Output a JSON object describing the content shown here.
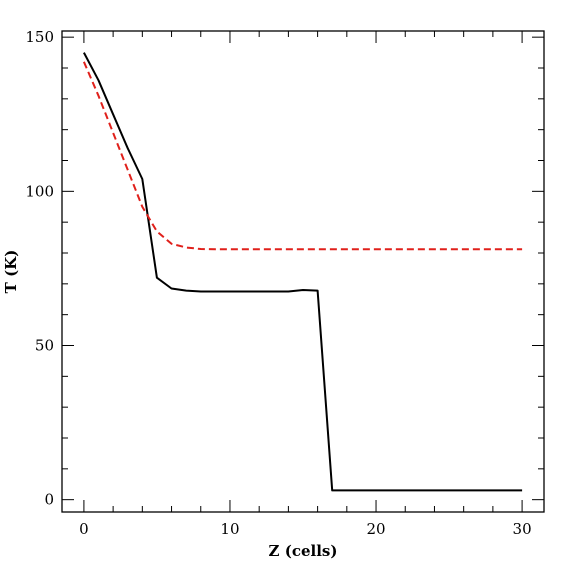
{
  "chart_data": {
    "type": "line",
    "title": "",
    "xlabel": "Z (cells)",
    "ylabel": "T (K)",
    "xlim": [
      -1.5,
      31.5
    ],
    "ylim": [
      -4,
      152
    ],
    "xticks": [
      0,
      10,
      20,
      30
    ],
    "yticks": [
      0,
      50,
      100,
      150
    ],
    "x_minor_step": 2,
    "y_minor_step": 10,
    "grid": false,
    "legend": "none",
    "series": [
      {
        "color": "#000000",
        "style": "solid",
        "x": [
          0,
          1,
          2,
          3,
          4,
          5,
          6,
          7,
          8,
          9,
          10,
          11,
          12,
          13,
          14,
          15,
          16,
          17,
          18,
          20,
          22,
          24,
          26,
          28,
          30
        ],
        "y": [
          145,
          136,
          125,
          114,
          104,
          72,
          68.5,
          67.8,
          67.5,
          67.5,
          67.5,
          67.5,
          67.5,
          67.5,
          67.5,
          68,
          67.8,
          3,
          3,
          3,
          3,
          3,
          3,
          3,
          3
        ]
      },
      {
        "color": "#e0201b",
        "style": "dashed",
        "x": [
          0,
          1,
          2,
          3,
          4,
          5,
          6,
          7,
          8,
          9,
          10,
          12,
          14,
          16,
          18,
          20,
          22,
          24,
          26,
          28,
          30
        ],
        "y": [
          142,
          131,
          119,
          107,
          95,
          87,
          83,
          81.8,
          81.3,
          81.2,
          81.2,
          81.2,
          81.2,
          81.2,
          81.2,
          81.2,
          81.2,
          81.2,
          81.2,
          81.2,
          81.2
        ]
      }
    ]
  }
}
